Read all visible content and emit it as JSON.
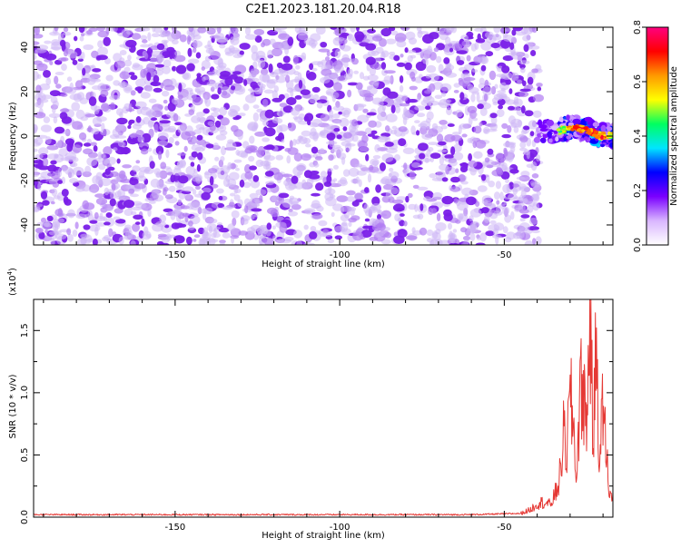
{
  "title": "C2E1.2023.181.20.04.R18",
  "colors": {
    "line": "#e53935",
    "speckle": "#7a1fe8",
    "speckle_light": "#cdb6f5"
  },
  "colorbar": {
    "label": "Normalized spectral amplitude",
    "ticks": [
      "0.0",
      "0.2",
      "0.4",
      "0.6",
      "0.8"
    ],
    "range": [
      0,
      0.8
    ],
    "stops": [
      "#ffffff",
      "#d9b6ff",
      "#7a00ff",
      "#0000ff",
      "#00e5ff",
      "#00ff60",
      "#ffff00",
      "#ff9900",
      "#ff0000",
      "#ff0080"
    ]
  },
  "chart_data": [
    {
      "type": "heatmap",
      "xlabel": "Height of straight line (km)",
      "ylabel": "Frequency (Hz)",
      "xlim": [
        -193,
        -17
      ],
      "ylim": [
        -49,
        49
      ],
      "x_ticks": [
        "-150",
        "-100",
        "-50"
      ],
      "x_tick_values": [
        -150,
        -100,
        -50
      ],
      "y_ticks": [
        "-40",
        "-20",
        "0",
        "20",
        "40"
      ],
      "y_tick_values": [
        -40,
        -20,
        0,
        20,
        40
      ],
      "noise_region_x": [
        -193,
        -42
      ],
      "noise_level": 0.1,
      "signal_band": {
        "x": [
          -40,
          -35,
          -30,
          -25,
          -20,
          -17
        ],
        "center_freq": [
          3,
          1,
          4,
          3,
          0,
          0
        ],
        "peak_amplitude": [
          0.4,
          0.5,
          0.7,
          0.8,
          0.75,
          0.6
        ]
      }
    },
    {
      "type": "line",
      "xlabel": "Height of straight line (km)",
      "ylabel": "SNR (10 * v/v)",
      "y_multiplier_label": "(x10",
      "y_multiplier_exp": "4",
      "xlim": [
        -193,
        -17
      ],
      "ylim": [
        0,
        1.75
      ],
      "x_ticks": [
        "-150",
        "-100",
        "-50"
      ],
      "x_tick_values": [
        -150,
        -100,
        -50
      ],
      "y_ticks": [
        "0.0",
        "0.5",
        "1.0",
        "1.5"
      ],
      "y_tick_values": [
        0,
        0.5,
        1.0,
        1.5
      ],
      "x": [
        -193,
        -120,
        -60,
        -45,
        -42,
        -40,
        -38,
        -36,
        -34,
        -33,
        -32,
        -31,
        -30,
        -29,
        -28,
        -27,
        -26,
        -25,
        -24,
        -23,
        -22,
        -21,
        -20,
        -19,
        -18,
        -17.5,
        -17
      ],
      "y": [
        0.02,
        0.02,
        0.02,
        0.03,
        0.06,
        0.11,
        0.12,
        0.1,
        0.22,
        0.35,
        0.65,
        0.55,
        0.95,
        0.75,
        0.3,
        1.0,
        1.05,
        0.7,
        1.75,
        0.6,
        1.45,
        0.4,
        0.95,
        0.5,
        0.2,
        0.15,
        0.2
      ]
    }
  ]
}
